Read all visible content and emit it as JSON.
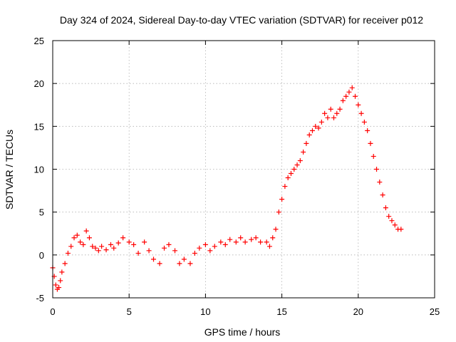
{
  "chart_data": {
    "type": "scatter",
    "title": "Day 324 of 2024, Sidereal Day-to-day VTEC variation (SDTVAR) for receiver p012",
    "xlabel": "GPS time / hours",
    "ylabel": "SDTVAR / TECUs",
    "xlim": [
      0,
      25
    ],
    "ylim": [
      -5,
      25
    ],
    "xticks": [
      "0",
      "5",
      "10",
      "15",
      "20",
      "25"
    ],
    "yticks": [
      "-5",
      "0",
      "5",
      "10",
      "15",
      "20",
      "25"
    ],
    "grid": true,
    "marker": "+",
    "color": "#ff0000",
    "series": [
      {
        "name": "SDTVAR",
        "x": [
          0.0,
          0.1,
          0.2,
          0.3,
          0.4,
          0.5,
          0.6,
          0.8,
          1.0,
          1.2,
          1.4,
          1.6,
          1.8,
          2.0,
          2.2,
          2.4,
          2.6,
          2.8,
          3.0,
          3.2,
          3.5,
          3.8,
          4.0,
          4.3,
          4.6,
          5.0,
          5.3,
          5.6,
          6.0,
          6.3,
          6.6,
          7.0,
          7.3,
          7.6,
          8.0,
          8.3,
          8.6,
          9.0,
          9.3,
          9.6,
          10.0,
          10.3,
          10.6,
          11.0,
          11.3,
          11.6,
          12.0,
          12.3,
          12.6,
          13.0,
          13.3,
          13.6,
          14.0,
          14.2,
          14.4,
          14.6,
          14.8,
          15.0,
          15.2,
          15.4,
          15.6,
          15.8,
          16.0,
          16.2,
          16.4,
          16.6,
          16.8,
          17.0,
          17.2,
          17.4,
          17.6,
          17.8,
          18.0,
          18.2,
          18.4,
          18.6,
          18.8,
          19.0,
          19.2,
          19.4,
          19.6,
          19.8,
          20.0,
          20.2,
          20.4,
          20.6,
          20.8,
          21.0,
          21.2,
          21.4,
          21.6,
          21.8,
          22.0,
          22.2,
          22.4,
          22.6,
          22.8
        ],
        "y": [
          -1.5,
          -2.5,
          -3.5,
          -4.0,
          -3.8,
          -3.0,
          -2.0,
          -1.0,
          0.2,
          1.0,
          2.0,
          2.3,
          1.5,
          1.2,
          2.8,
          2.0,
          1.0,
          0.8,
          0.5,
          1.0,
          0.6,
          1.2,
          0.8,
          1.4,
          2.0,
          1.5,
          1.2,
          0.2,
          1.5,
          0.5,
          -0.5,
          -1.0,
          0.8,
          1.2,
          0.5,
          -1.0,
          -0.5,
          -1.0,
          0.2,
          0.8,
          1.2,
          0.5,
          1.0,
          1.5,
          1.2,
          1.8,
          1.5,
          2.0,
          1.5,
          1.8,
          2.0,
          1.5,
          1.5,
          1.0,
          2.0,
          3.0,
          5.0,
          6.5,
          8.0,
          9.0,
          9.5,
          10.0,
          10.5,
          11.0,
          12.0,
          13.0,
          14.0,
          14.5,
          15.0,
          14.8,
          15.5,
          16.5,
          16.0,
          17.0,
          16.0,
          16.5,
          17.0,
          18.0,
          18.5,
          19.0,
          19.5,
          18.5,
          17.5,
          16.5,
          15.5,
          14.5,
          13.0,
          11.5,
          10.0,
          8.5,
          7.0,
          5.5,
          4.5,
          4.0,
          3.5,
          3.0,
          3.0
        ]
      }
    ]
  }
}
